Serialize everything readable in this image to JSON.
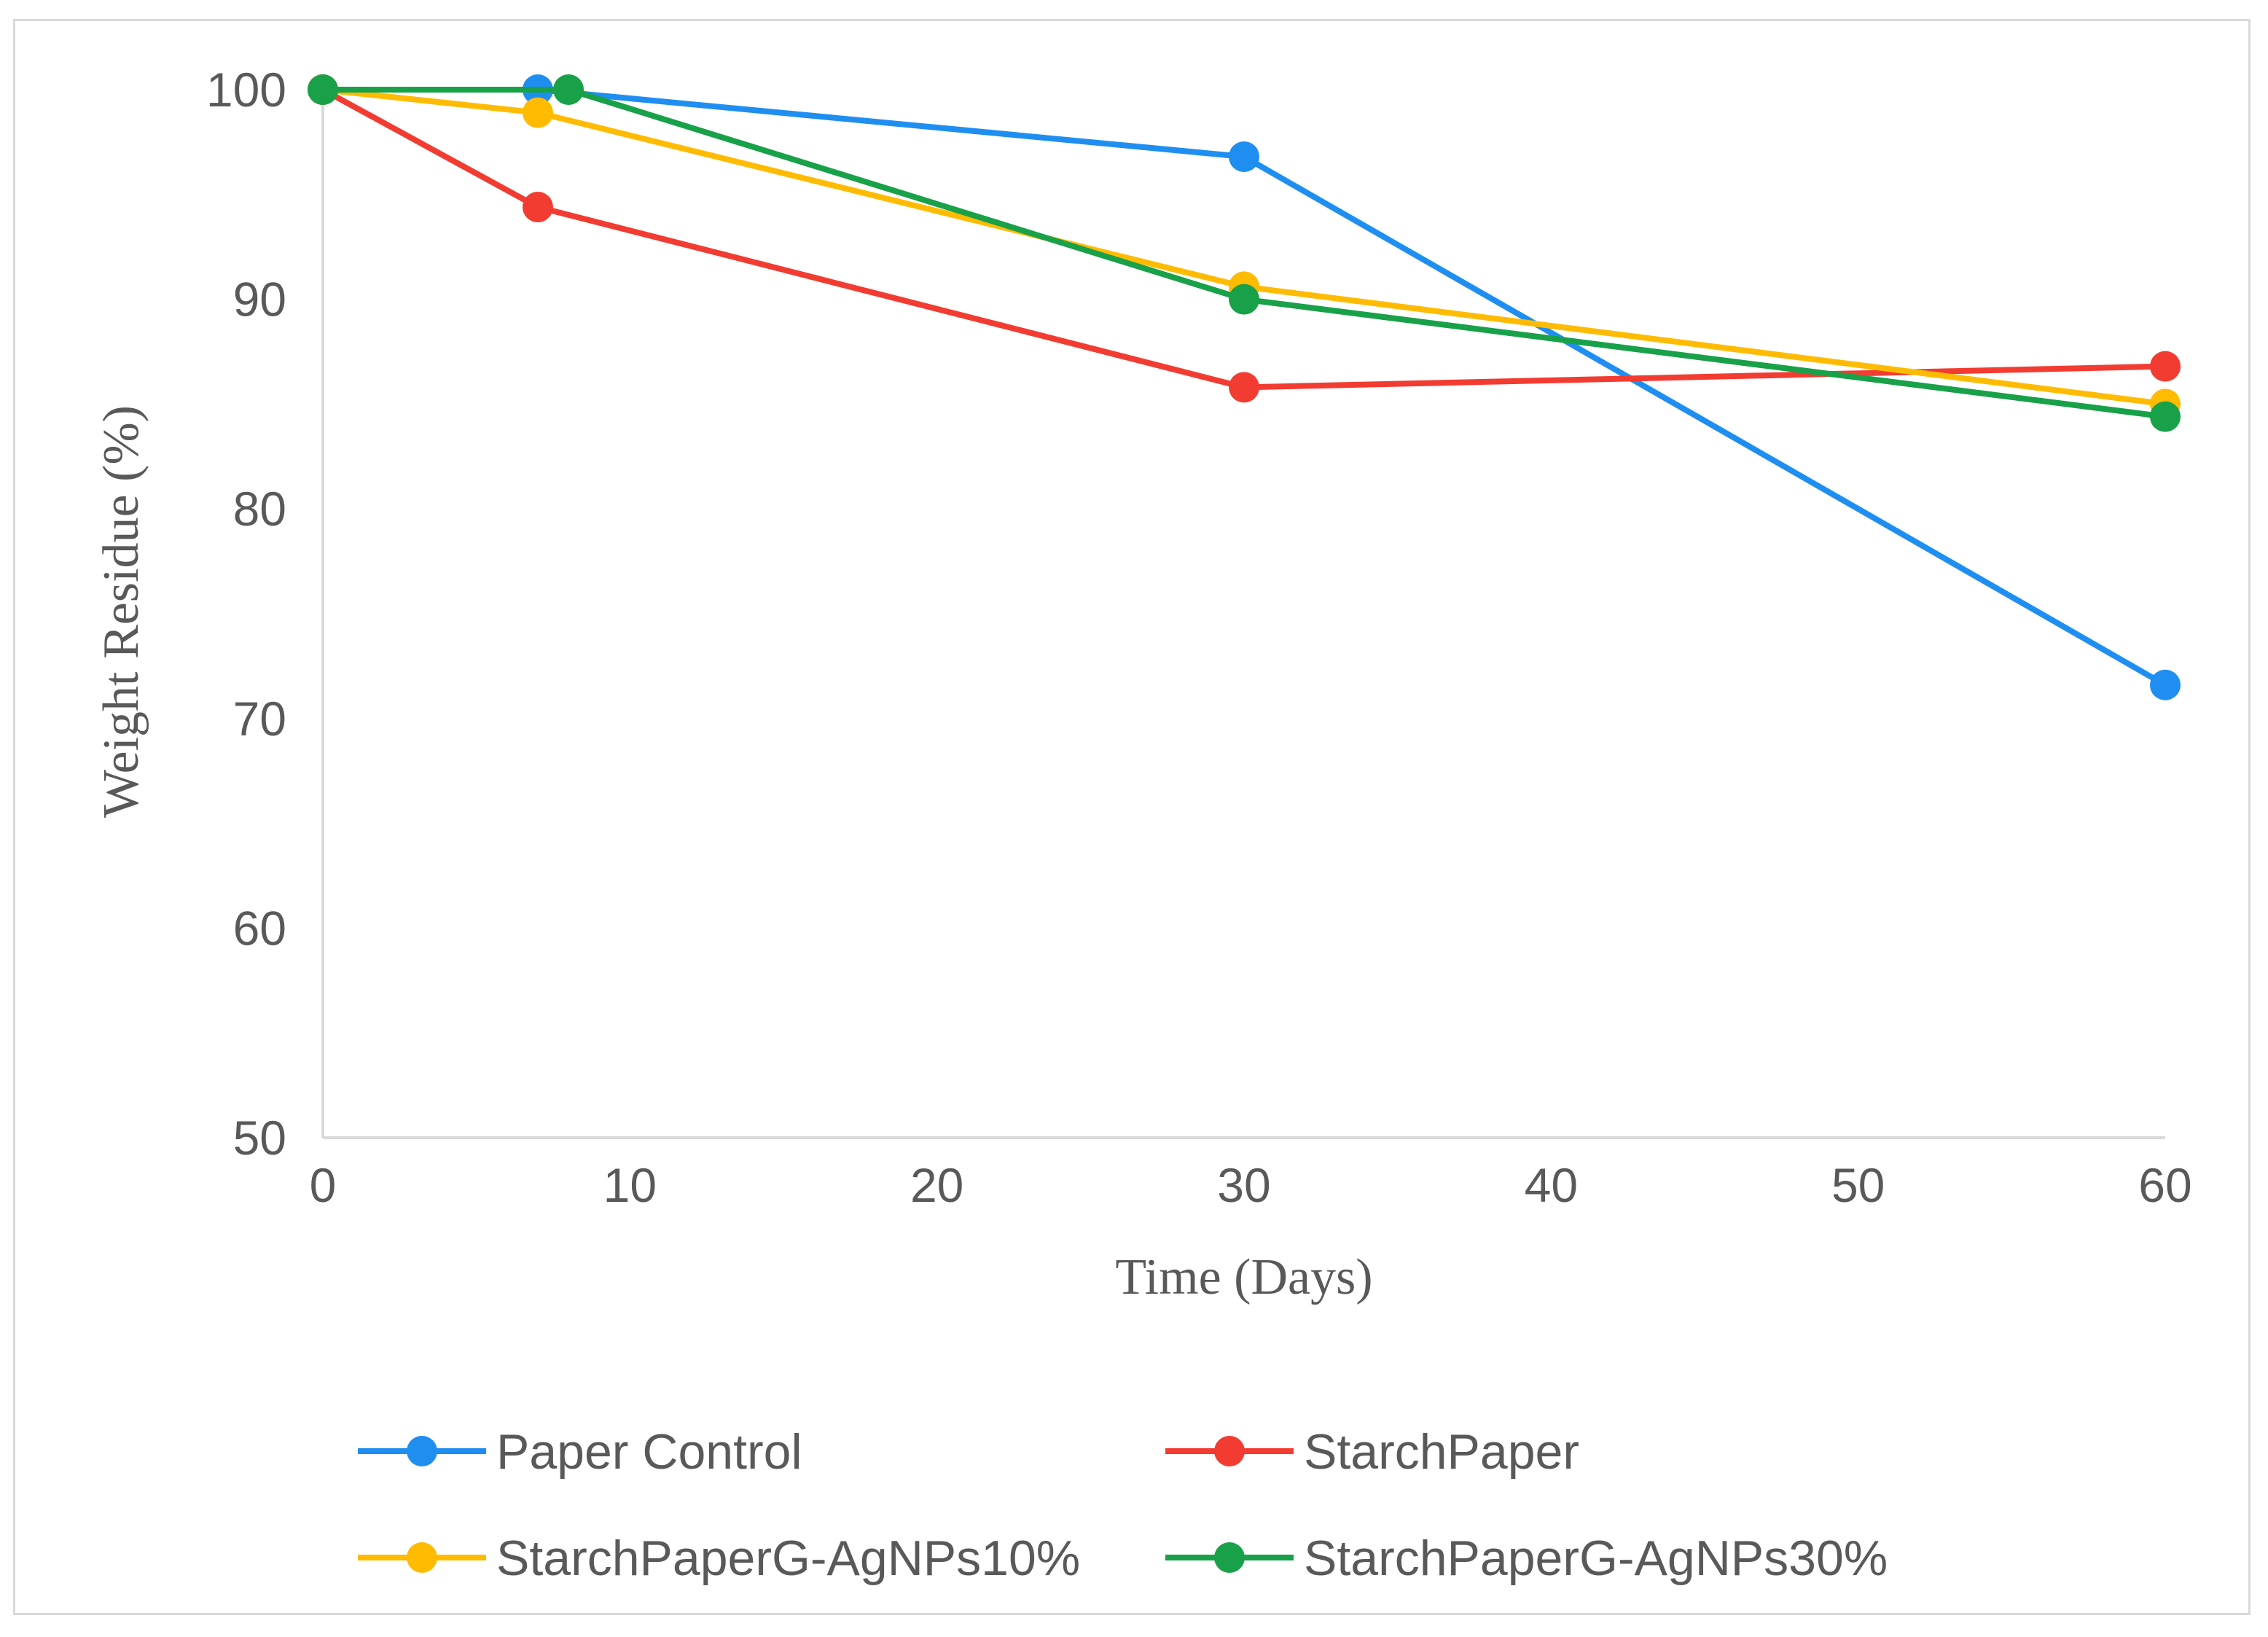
{
  "chart_data": {
    "type": "line",
    "title": "",
    "xlabel": "Time (Days)",
    "ylabel": "Weight Residue (%)",
    "xlim": [
      0,
      60
    ],
    "ylim": [
      50,
      100
    ],
    "xticks": [
      "0",
      "10",
      "20",
      "30",
      "40",
      "50",
      "60"
    ],
    "yticks": [
      "50",
      "60",
      "70",
      "80",
      "90",
      "100"
    ],
    "grid": false,
    "legend_position": "bottom",
    "series": [
      {
        "name": "Paper Control",
        "color": "#1f8ef1",
        "points": [
          [
            0,
            100
          ],
          [
            7,
            100
          ],
          [
            30,
            96.8
          ],
          [
            60,
            71.6
          ]
        ]
      },
      {
        "name": "StarchPaper",
        "color": "#f23c32",
        "points": [
          [
            0,
            100
          ],
          [
            7,
            94.4
          ],
          [
            30,
            85.8
          ],
          [
            60,
            86.8
          ]
        ]
      },
      {
        "name": "StarchPaperG-AgNPs10%",
        "color": "#ffbb00",
        "points": [
          [
            0,
            100
          ],
          [
            7,
            98.9
          ],
          [
            30,
            90.6
          ],
          [
            60,
            85
          ]
        ]
      },
      {
        "name": "StarchPaperG-AgNPs30%",
        "color": "#18a148",
        "points": [
          [
            0,
            100
          ],
          [
            8,
            100
          ],
          [
            30,
            90
          ],
          [
            60,
            84.4
          ]
        ]
      }
    ]
  }
}
